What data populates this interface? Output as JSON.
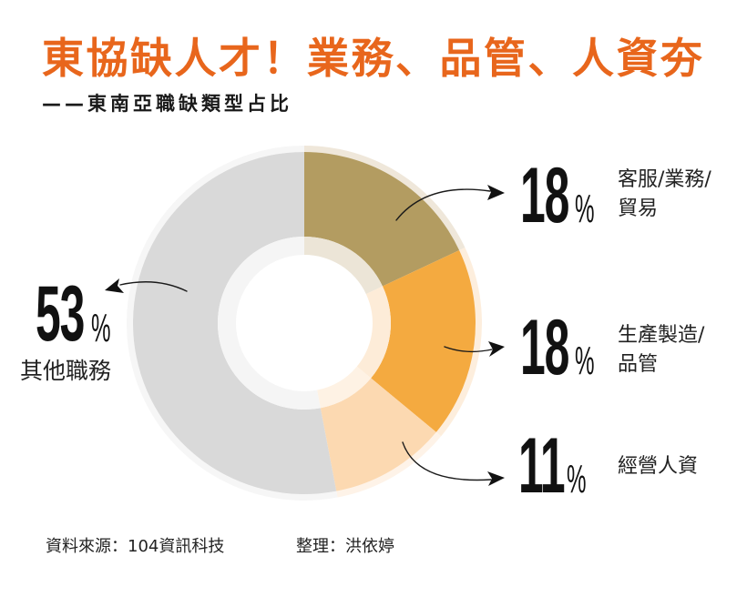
{
  "title": "東協缺人才！業務、品管、人資夯",
  "subtitle": "——東南亞職缺類型占比",
  "callouts": [
    {
      "value": "18",
      "unit": "%",
      "label_lines": [
        "客服/業務/",
        "貿易"
      ]
    },
    {
      "value": "18",
      "unit": "%",
      "label_lines": [
        "生產製造/",
        "品管"
      ]
    },
    {
      "value": "11",
      "unit": "%",
      "label_lines": [
        "經營人資"
      ]
    },
    {
      "value": "53",
      "unit": "%",
      "label_lines": [
        "其他職務"
      ]
    }
  ],
  "footer": {
    "source": "資料來源：104資訊科技",
    "editor": "整理：洪依婷"
  },
  "chart_data": {
    "type": "pie",
    "subtype": "donut",
    "title": "東協缺人才！業務、品管、人資夯",
    "subtitle": "東南亞職缺類型占比",
    "categories": [
      "客服/業務/貿易",
      "生產製造/品管",
      "經營人資",
      "其他職務"
    ],
    "values": [
      18,
      18,
      11,
      53
    ],
    "unit": "%",
    "start_angle_deg": 0,
    "direction": "clockwise",
    "colors": [
      "#b39c61",
      "#f4aa40",
      "#fcd9b1",
      "#d9d9d9"
    ],
    "inner_tints": [
      "#ece5d7",
      "#fdecd8",
      "#fef2e4",
      "#f5f5f5"
    ],
    "outer_tints": [
      "#efe7da",
      "#fdeedd",
      "#fef3e8",
      "#f6f6f6"
    ],
    "legend": "callout labels with arrows",
    "source": "104資訊科技"
  }
}
